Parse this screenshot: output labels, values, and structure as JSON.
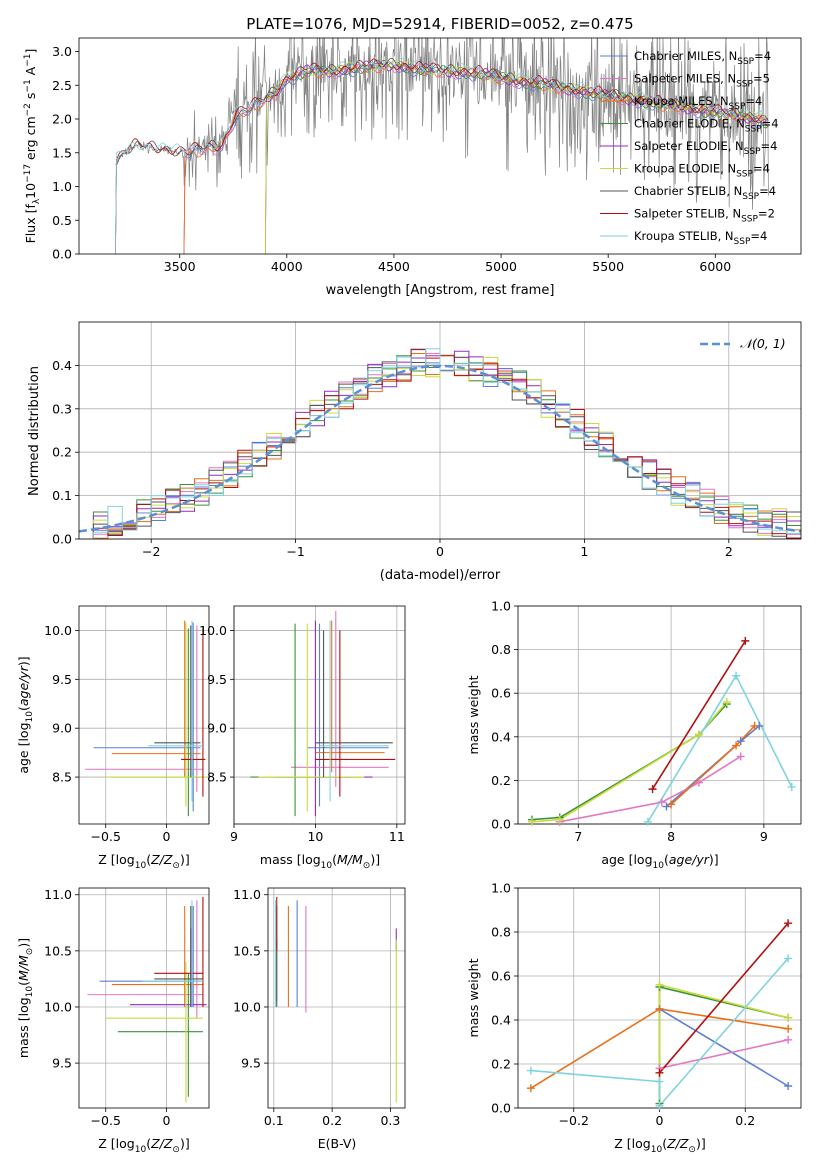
{
  "title": "PLATE=1076, MJD=52914, FIBERID=0052, z=0.475",
  "colors": {
    "Chabrier MILES": "#5b7fd6",
    "Salpeter MILES": "#e377c2",
    "Kroupa MILES": "#e8701a",
    "Chabrier ELODIE": "#3a923a",
    "Salpeter ELODIE": "#9428c8",
    "Kroupa ELODIE": "#c8dc3c",
    "Chabrier STELIB": "#555555",
    "Salpeter STELIB": "#b01010",
    "Kroupa STELIB": "#7fd3e0",
    "data": "#808080",
    "normal": "#5b8fd6"
  },
  "chart_data": [
    {
      "type": "line",
      "xlabel": "wavelength [Angstrom, rest frame]",
      "ylabel": "Flux [f_λ 10^-17 erg cm^-2 s^-1 A^-1]",
      "xlim": [
        3030,
        6400
      ],
      "ylim": [
        0,
        3.2
      ],
      "xticks": [
        3500,
        4000,
        4500,
        5000,
        5500,
        6000
      ],
      "yticks": [
        0.0,
        0.5,
        1.0,
        1.5,
        2.0,
        2.5,
        3.0
      ],
      "legend_position": "right",
      "legend": [
        {
          "name": "Chabrier MILES",
          "nssp": "4"
        },
        {
          "name": "Salpeter MILES",
          "nssp": "5"
        },
        {
          "name": "Kroupa MILES",
          "nssp": "4"
        },
        {
          "name": "Chabrier ELODIE",
          "nssp": "4"
        },
        {
          "name": "Salpeter ELODIE",
          "nssp": "4"
        },
        {
          "name": "Kroupa ELODIE",
          "nssp": "4"
        },
        {
          "name": "Chabrier STELIB",
          "nssp": "4"
        },
        {
          "name": "Salpeter STELIB",
          "nssp": "2"
        },
        {
          "name": "Kroupa STELIB",
          "nssp": "4"
        }
      ],
      "model_continuum": {
        "x": [
          3200,
          3260,
          3300,
          3400,
          3500,
          3600,
          3700,
          3760,
          3850,
          3950,
          4000,
          4100,
          4200,
          4300,
          4400,
          4500,
          4600,
          4700,
          4800,
          4900,
          5000,
          5100,
          5200,
          5300,
          5400,
          5500,
          5600,
          5700,
          5800,
          5900,
          6000,
          6100,
          6200,
          6250
        ],
        "y": [
          1.35,
          1.55,
          1.6,
          1.55,
          1.5,
          1.55,
          1.6,
          2.05,
          2.2,
          2.4,
          2.6,
          2.72,
          2.7,
          2.75,
          2.78,
          2.8,
          2.75,
          2.72,
          2.7,
          2.68,
          2.62,
          2.55,
          2.52,
          2.45,
          2.4,
          2.35,
          2.3,
          2.25,
          2.2,
          2.15,
          2.1,
          2.05,
          2.0,
          1.95
        ]
      },
      "model_start": {
        "Chabrier MILES": 3520,
        "Salpeter MILES": 3520,
        "Kroupa MILES": 3520,
        "Chabrier ELODIE": 3900,
        "Salpeter ELODIE": 3900,
        "Kroupa ELODIE": 3900,
        "Chabrier STELIB": 3200,
        "Salpeter STELIB": 3200,
        "Kroupa STELIB": 3200
      }
    },
    {
      "type": "step",
      "xlabel": "(data-model)/error",
      "ylabel": "Normed distribution",
      "xlim": [
        -2.5,
        2.5
      ],
      "ylim": [
        0,
        0.5
      ],
      "xticks": [
        -2,
        -1,
        0,
        1,
        2
      ],
      "yticks": [
        0.0,
        0.1,
        0.2,
        0.3,
        0.4
      ],
      "grid": true,
      "legend_position": "top-right",
      "reference_label": "𝒩(0, 1)",
      "bin_width": 0.1
    },
    {
      "type": "errorbar",
      "xlabel": "Z [log10(Z/Z⊙)]",
      "ylabel": "age  [log10(age/yr)]",
      "xlim": [
        -0.72,
        0.35
      ],
      "ylim": [
        8.02,
        10.25
      ],
      "xticks": [
        -0.5,
        0.0
      ],
      "yticks": [
        8.5,
        9.0,
        9.5,
        10.0
      ],
      "grid": true,
      "points": [
        {
          "series": "Chabrier MILES",
          "x": 0.22,
          "xlo": -0.6,
          "xhi": 0.28,
          "y": 8.8,
          "ylo": 8.15,
          "yhi": 10.08
        },
        {
          "series": "Salpeter MILES",
          "x": 0.25,
          "xlo": -0.67,
          "xhi": 0.3,
          "y": 8.58,
          "ylo": 8.35,
          "yhi": 10.05
        },
        {
          "series": "Kroupa MILES",
          "x": 0.15,
          "xlo": -0.45,
          "xhi": 0.28,
          "y": 8.74,
          "ylo": 8.5,
          "yhi": 10.1
        },
        {
          "series": "Chabrier ELODIE",
          "x": 0.18,
          "xlo": -0.45,
          "xhi": 0.3,
          "y": 8.5,
          "ylo": 8.1,
          "yhi": 10.02
        },
        {
          "series": "Kroupa ELODIE",
          "x": 0.16,
          "xlo": -0.5,
          "xhi": 0.33,
          "y": 8.5,
          "ylo": 8.2,
          "yhi": 10.08
        },
        {
          "series": "Chabrier STELIB",
          "x": 0.2,
          "xlo": -0.1,
          "xhi": 0.28,
          "y": 8.85,
          "ylo": 8.5,
          "yhi": 10.05
        },
        {
          "series": "Salpeter STELIB",
          "x": 0.3,
          "xlo": 0.12,
          "xhi": 0.32,
          "y": 8.68,
          "ylo": 8.3,
          "yhi": 10.03
        },
        {
          "series": "Kroupa STELIB",
          "x": 0.21,
          "xlo": -0.15,
          "xhi": 0.3,
          "y": 8.82,
          "ylo": 8.25,
          "yhi": 10.1
        }
      ]
    },
    {
      "type": "errorbar",
      "xlabel": "mass [log10(M/M⊙)]",
      "xlim": [
        9.0,
        11.1
      ],
      "ylim": [
        8.02,
        10.25
      ],
      "xticks": [
        9,
        10,
        11
      ],
      "yticks": [
        8.5,
        9.0,
        9.5,
        10.0
      ],
      "grid": true,
      "points": [
        {
          "series": "Chabrier MILES",
          "x": 10.05,
          "xlo": 9.9,
          "xhi": 10.9,
          "y": 8.8,
          "ylo": 8.2,
          "yhi": 10.07
        },
        {
          "series": "Salpeter MILES",
          "x": 10.25,
          "xlo": 9.7,
          "xhi": 10.9,
          "y": 8.6,
          "ylo": 8.4,
          "yhi": 10.2
        },
        {
          "series": "Kroupa MILES",
          "x": 10.2,
          "xlo": 10.0,
          "xhi": 10.85,
          "y": 8.75,
          "ylo": 8.55,
          "yhi": 10.1
        },
        {
          "series": "Chabrier ELODIE",
          "x": 9.75,
          "xlo": 9.2,
          "xhi": 10.45,
          "y": 8.5,
          "ylo": 8.1,
          "yhi": 10.07
        },
        {
          "series": "Salpeter ELODIE",
          "x": 10.0,
          "xlo": 9.5,
          "xhi": 10.7,
          "y": 8.5,
          "ylo": 8.1,
          "yhi": 10.1
        },
        {
          "series": "Kroupa ELODIE",
          "x": 9.9,
          "xlo": 9.3,
          "xhi": 10.6,
          "y": 8.5,
          "ylo": 8.15,
          "yhi": 10.07
        },
        {
          "series": "Chabrier STELIB",
          "x": 10.1,
          "xlo": 10.0,
          "xhi": 10.95,
          "y": 8.85,
          "ylo": 8.5,
          "yhi": 10.0
        },
        {
          "series": "Salpeter STELIB",
          "x": 10.3,
          "xlo": 10.0,
          "xhi": 10.98,
          "y": 8.68,
          "ylo": 8.3,
          "yhi": 10.0
        },
        {
          "series": "Kroupa STELIB",
          "x": 10.18,
          "xlo": 10.05,
          "xhi": 10.9,
          "y": 8.82,
          "ylo": 8.25,
          "yhi": 10.1
        }
      ]
    },
    {
      "type": "line",
      "xlabel": "age  [log10(age/yr)]",
      "ylabel": "mass weight",
      "xlim": [
        6.35,
        9.4
      ],
      "ylim": [
        0,
        1.0
      ],
      "xticks": [
        7,
        8,
        9
      ],
      "yticks": [
        0.0,
        0.2,
        0.4,
        0.6,
        0.8,
        1.0
      ],
      "grid": true,
      "series": [
        {
          "name": "Chabrier MILES",
          "x": [
            7.95,
            8.75,
            8.95
          ],
          "y": [
            0.08,
            0.38,
            0.45
          ]
        },
        {
          "name": "Salpeter MILES",
          "x": [
            6.8,
            7.9,
            8.3,
            8.75
          ],
          "y": [
            0.01,
            0.1,
            0.19,
            0.31
          ]
        },
        {
          "name": "Kroupa MILES",
          "x": [
            8.0,
            8.7,
            8.9
          ],
          "y": [
            0.09,
            0.36,
            0.45
          ]
        },
        {
          "name": "Chabrier ELODIE",
          "x": [
            6.5,
            6.8,
            8.3,
            8.6
          ],
          "y": [
            0.02,
            0.03,
            0.41,
            0.55
          ]
        },
        {
          "name": "Kroupa ELODIE",
          "x": [
            6.5,
            6.8,
            8.3,
            8.6
          ],
          "y": [
            0.01,
            0.02,
            0.41,
            0.56
          ]
        },
        {
          "name": "Salpeter STELIB",
          "x": [
            7.8,
            8.8
          ],
          "y": [
            0.16,
            0.84
          ]
        },
        {
          "name": "Kroupa STELIB",
          "x": [
            7.75,
            8.7,
            9.3
          ],
          "y": [
            0.01,
            0.68,
            0.17
          ]
        }
      ]
    },
    {
      "type": "errorbar",
      "xlabel": "Z [log10(Z/Z⊙)]",
      "ylabel": "mass [log10(M/M⊙)]",
      "xlim": [
        -0.72,
        0.35
      ],
      "ylim": [
        9.1,
        11.06
      ],
      "xticks": [
        -0.5,
        0.0
      ],
      "yticks": [
        9.5,
        10.0,
        10.5,
        11.0
      ],
      "grid": true,
      "points": [
        {
          "series": "Chabrier MILES",
          "x": 0.22,
          "xlo": -0.55,
          "xhi": 0.28,
          "y": 10.23,
          "ylo": 10.0,
          "yhi": 10.9
        },
        {
          "series": "Salpeter MILES",
          "x": 0.25,
          "xlo": -0.65,
          "xhi": 0.3,
          "y": 10.11,
          "ylo": 9.9,
          "yhi": 10.95
        },
        {
          "series": "Kroupa MILES",
          "x": 0.15,
          "xlo": -0.45,
          "xhi": 0.3,
          "y": 10.2,
          "ylo": 10.0,
          "yhi": 10.9
        },
        {
          "series": "Chabrier ELODIE",
          "x": 0.18,
          "xlo": -0.4,
          "xhi": 0.3,
          "y": 9.78,
          "ylo": 9.2,
          "yhi": 10.3
        },
        {
          "series": "Salpeter ELODIE",
          "x": 0.2,
          "xlo": -0.3,
          "xhi": 0.33,
          "y": 10.02,
          "ylo": 10.0,
          "yhi": 10.7
        },
        {
          "series": "Kroupa ELODIE",
          "x": 0.16,
          "xlo": -0.5,
          "xhi": 0.3,
          "y": 9.9,
          "ylo": 9.15,
          "yhi": 10.4
        },
        {
          "series": "Chabrier STELIB",
          "x": 0.2,
          "xlo": -0.1,
          "xhi": 0.3,
          "y": 10.25,
          "ylo": 10.0,
          "yhi": 10.9
        },
        {
          "series": "Salpeter STELIB",
          "x": 0.3,
          "xlo": -0.1,
          "xhi": 0.3,
          "y": 10.3,
          "ylo": 10.0,
          "yhi": 10.98
        },
        {
          "series": "Kroupa STELIB",
          "x": 0.21,
          "xlo": -0.2,
          "xhi": 0.3,
          "y": 10.23,
          "ylo": 10.0,
          "yhi": 10.95
        }
      ]
    },
    {
      "type": "errorbar",
      "xlabel": "E(B-V)",
      "xlim": [
        0.09,
        0.325
      ],
      "ylim": [
        9.1,
        11.06
      ],
      "xticks": [
        0.1,
        0.2,
        0.3
      ],
      "yticks": [
        9.5,
        10.0,
        10.5,
        11.0
      ],
      "grid": true,
      "points": [
        {
          "series": "Chabrier MILES",
          "x": 0.14,
          "y": 10.23,
          "ylo": 10.0,
          "yhi": 10.95
        },
        {
          "series": "Salpeter MILES",
          "x": 0.155,
          "y": 10.11,
          "ylo": 9.95,
          "yhi": 10.9
        },
        {
          "series": "Kroupa MILES",
          "x": 0.125,
          "y": 10.2,
          "ylo": 10.0,
          "yhi": 10.9
        },
        {
          "series": "Chabrier ELODIE",
          "x": 0.105,
          "y": 9.78,
          "ylo": 10.05,
          "yhi": 10.6
        },
        {
          "series": "Salpeter ELODIE",
          "x": 0.31,
          "y": 10.02,
          "ylo": 10.5,
          "yhi": 10.7
        },
        {
          "series": "Kroupa ELODIE",
          "x": 0.31,
          "y": 9.9,
          "ylo": 9.15,
          "yhi": 10.6
        },
        {
          "series": "Chabrier STELIB",
          "x": 0.105,
          "y": 10.25,
          "ylo": 10.0,
          "yhi": 10.9
        },
        {
          "series": "Salpeter STELIB",
          "x": 0.105,
          "y": 10.3,
          "ylo": 10.5,
          "yhi": 10.98
        },
        {
          "series": "Kroupa STELIB",
          "x": 0.103,
          "y": 10.23,
          "ylo": 10.0,
          "yhi": 10.95
        }
      ]
    },
    {
      "type": "line",
      "xlabel": "Z [log10(Z/Z⊙)]",
      "ylabel": "mass weight",
      "xlim": [
        -0.33,
        0.33
      ],
      "ylim": [
        0,
        1.0
      ],
      "xticks": [
        -0.2,
        0.0,
        0.2
      ],
      "yticks": [
        0.0,
        0.2,
        0.4,
        0.6,
        0.8,
        1.0
      ],
      "grid": true,
      "series": [
        {
          "name": "Chabrier MILES",
          "x": [
            0.0,
            0.3
          ],
          "y": [
            0.45,
            0.1
          ]
        },
        {
          "name": "Salpeter MILES",
          "x": [
            0.0,
            0.3
          ],
          "y": [
            0.18,
            0.31
          ]
        },
        {
          "name": "Kroupa MILES",
          "x": [
            -0.3,
            0.0,
            0.3
          ],
          "y": [
            0.09,
            0.45,
            0.36
          ]
        },
        {
          "name": "Chabrier ELODIE",
          "x": [
            0.0,
            0.0,
            0.3
          ],
          "y": [
            0.02,
            0.55,
            0.41
          ]
        },
        {
          "name": "Kroupa ELODIE",
          "x": [
            0.0,
            0.0,
            0.3
          ],
          "y": [
            0.01,
            0.56,
            0.41
          ]
        },
        {
          "name": "Salpeter STELIB",
          "x": [
            0.0,
            0.3
          ],
          "y": [
            0.16,
            0.84
          ]
        },
        {
          "name": "Kroupa STELIB",
          "x": [
            -0.3,
            0.0,
            0.0,
            0.3
          ],
          "y": [
            0.17,
            0.12,
            0.01,
            0.68
          ]
        }
      ]
    }
  ]
}
